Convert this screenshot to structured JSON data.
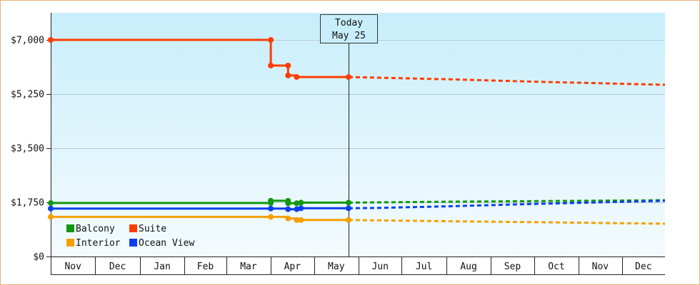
{
  "chart_data": {
    "type": "line",
    "title": "",
    "xlabel": "",
    "ylabel": "",
    "ylim": [
      0,
      7875
    ],
    "y_ticks": [
      {
        "value": 0,
        "label": "$0"
      },
      {
        "value": 1750,
        "label": "$1,750"
      },
      {
        "value": 3500,
        "label": "$3,500"
      },
      {
        "value": 5250,
        "label": "$5,250"
      },
      {
        "value": 7000,
        "label": "$7,000"
      }
    ],
    "x_range": [
      "2023-10-31",
      "2024-12-31"
    ],
    "months": [
      {
        "label": "Nov",
        "start": "2023-10-31"
      },
      {
        "label": "Dec",
        "start": "2023-12-01"
      },
      {
        "label": "Jan",
        "start": "2024-01-01"
      },
      {
        "label": "Feb",
        "start": "2024-02-01"
      },
      {
        "label": "Mar",
        "start": "2024-03-01"
      },
      {
        "label": "Apr",
        "start": "2024-04-01"
      },
      {
        "label": "May",
        "start": "2024-05-01"
      },
      {
        "label": "Jun",
        "start": "2024-06-01"
      },
      {
        "label": "Jul",
        "start": "2024-07-01"
      },
      {
        "label": "Aug",
        "start": "2024-08-01"
      },
      {
        "label": "Sep",
        "start": "2024-09-01"
      },
      {
        "label": "Oct",
        "start": "2024-10-01"
      },
      {
        "label": "Nov",
        "start": "2024-11-01"
      },
      {
        "label": "Dec",
        "start": "2024-12-01"
      }
    ],
    "today": {
      "date": "2024-05-25",
      "line1": "Today",
      "line2": "May 25"
    },
    "grid": true,
    "legend_position": "bottom-left",
    "series": [
      {
        "name": "Suite",
        "color": "#ff3d00",
        "history": [
          [
            "2023-10-31",
            7000
          ],
          [
            "2024-04-01",
            7000
          ],
          [
            "2024-04-01",
            6170
          ],
          [
            "2024-04-13",
            6170
          ],
          [
            "2024-04-13",
            5850
          ],
          [
            "2024-04-19",
            5850
          ],
          [
            "2024-04-19",
            5800
          ],
          [
            "2024-05-25",
            5800
          ]
        ],
        "markers": [
          [
            "2023-10-31",
            7000
          ],
          [
            "2024-04-01",
            7000
          ],
          [
            "2024-04-01",
            6170
          ],
          [
            "2024-04-13",
            6170
          ],
          [
            "2024-04-13",
            5850
          ],
          [
            "2024-04-19",
            5800
          ],
          [
            "2024-05-25",
            5800
          ]
        ],
        "forecast": [
          [
            "2024-05-25",
            5800
          ],
          [
            "2024-08-01",
            5730
          ],
          [
            "2024-10-01",
            5650
          ],
          [
            "2024-12-31",
            5550
          ]
        ]
      },
      {
        "name": "Balcony",
        "color": "#119911",
        "history": [
          [
            "2023-10-31",
            1730
          ],
          [
            "2024-04-01",
            1730
          ],
          [
            "2024-04-01",
            1800
          ],
          [
            "2024-04-13",
            1800
          ],
          [
            "2024-04-13",
            1720
          ],
          [
            "2024-04-19",
            1720
          ],
          [
            "2024-04-19",
            1740
          ],
          [
            "2024-05-25",
            1740
          ]
        ],
        "markers": [
          [
            "2023-10-31",
            1730
          ],
          [
            "2024-04-01",
            1730
          ],
          [
            "2024-04-01",
            1800
          ],
          [
            "2024-04-13",
            1800
          ],
          [
            "2024-04-13",
            1720
          ],
          [
            "2024-04-19",
            1720
          ],
          [
            "2024-04-22",
            1740
          ],
          [
            "2024-05-25",
            1740
          ]
        ],
        "forecast": [
          [
            "2024-05-25",
            1740
          ],
          [
            "2024-08-01",
            1770
          ],
          [
            "2024-10-01",
            1790
          ],
          [
            "2024-12-31",
            1820
          ]
        ]
      },
      {
        "name": "Ocean View",
        "color": "#0b3fee",
        "history": [
          [
            "2023-10-31",
            1550
          ],
          [
            "2024-04-01",
            1550
          ],
          [
            "2024-04-13",
            1550
          ],
          [
            "2024-04-13",
            1530
          ],
          [
            "2024-04-19",
            1530
          ],
          [
            "2024-04-19",
            1560
          ],
          [
            "2024-05-25",
            1560
          ]
        ],
        "markers": [
          [
            "2023-10-31",
            1550
          ],
          [
            "2024-04-01",
            1550
          ],
          [
            "2024-04-13",
            1530
          ],
          [
            "2024-04-19",
            1530
          ],
          [
            "2024-04-22",
            1560
          ],
          [
            "2024-05-25",
            1560
          ]
        ],
        "forecast": [
          [
            "2024-05-25",
            1560
          ],
          [
            "2024-06-15",
            1570
          ],
          [
            "2024-08-01",
            1620
          ],
          [
            "2024-10-01",
            1700
          ],
          [
            "2024-12-31",
            1800
          ]
        ]
      },
      {
        "name": "Interior",
        "color": "#f5a000",
        "history": [
          [
            "2023-10-31",
            1280
          ],
          [
            "2024-04-01",
            1280
          ],
          [
            "2024-04-13",
            1280
          ],
          [
            "2024-04-13",
            1230
          ],
          [
            "2024-04-19",
            1230
          ],
          [
            "2024-04-19",
            1180
          ],
          [
            "2024-05-25",
            1180
          ]
        ],
        "markers": [
          [
            "2023-10-31",
            1280
          ],
          [
            "2024-04-01",
            1280
          ],
          [
            "2024-04-13",
            1230
          ],
          [
            "2024-04-19",
            1180
          ],
          [
            "2024-04-22",
            1180
          ],
          [
            "2024-05-25",
            1180
          ]
        ],
        "forecast": [
          [
            "2024-05-25",
            1180
          ],
          [
            "2024-08-01",
            1140
          ],
          [
            "2024-10-01",
            1110
          ],
          [
            "2024-12-31",
            1060
          ]
        ]
      }
    ],
    "legend": [
      {
        "name": "Balcony",
        "color": "#119911"
      },
      {
        "name": "Suite",
        "color": "#ff3d00"
      },
      {
        "name": "Interior",
        "color": "#f5a000"
      },
      {
        "name": "Ocean View",
        "color": "#0b3fee"
      }
    ],
    "colors": {
      "background_top": "#c8eefb",
      "background_bottom": "#f4fbfe",
      "frame_border": "#e8b27a",
      "grid": "#b8c8d0"
    }
  }
}
